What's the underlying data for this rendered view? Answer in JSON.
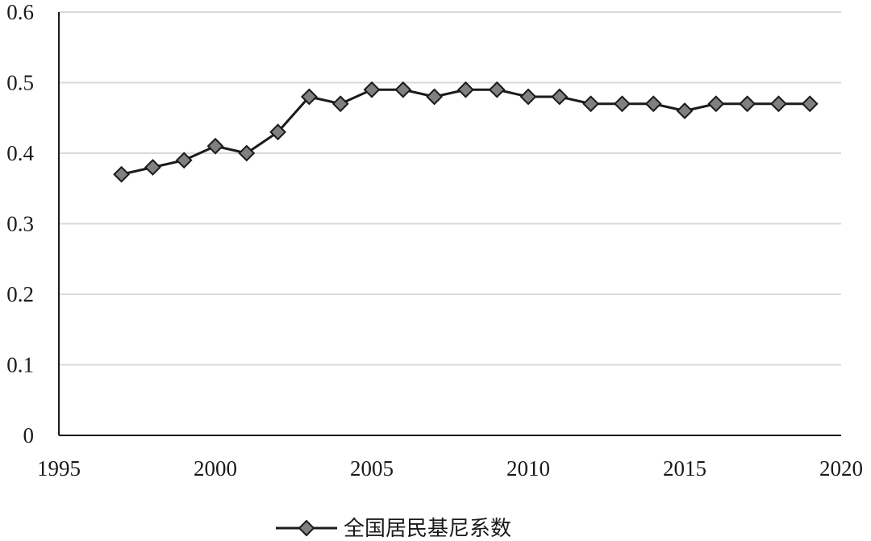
{
  "chart_data": {
    "type": "line",
    "title": "",
    "xlabel": "",
    "ylabel": "",
    "xlim": [
      1995,
      2020
    ],
    "ylim": [
      0,
      0.6
    ],
    "x_ticks": [
      "1995",
      "2000",
      "2005",
      "2010",
      "2015",
      "2020"
    ],
    "y_ticks": [
      "0",
      "0.1",
      "0.2",
      "0.3",
      "0.4",
      "0.5",
      "0.6"
    ],
    "grid": "horizontal",
    "legend_position": "bottom-center",
    "series": [
      {
        "name": "全国居民基尼系数",
        "color": "#1a1a1a",
        "marker": "diamond",
        "marker_color": "#808080",
        "x": [
          1997,
          1998,
          1999,
          2000,
          2001,
          2002,
          2003,
          2004,
          2005,
          2006,
          2007,
          2008,
          2009,
          2010,
          2011,
          2012,
          2013,
          2014,
          2015,
          2016,
          2017,
          2018,
          2019
        ],
        "y": [
          0.37,
          0.38,
          0.39,
          0.41,
          0.4,
          0.43,
          0.48,
          0.47,
          0.49,
          0.49,
          0.48,
          0.49,
          0.49,
          0.48,
          0.48,
          0.47,
          0.47,
          0.47,
          0.46,
          0.47,
          0.47,
          0.47,
          0.47
        ]
      }
    ]
  }
}
